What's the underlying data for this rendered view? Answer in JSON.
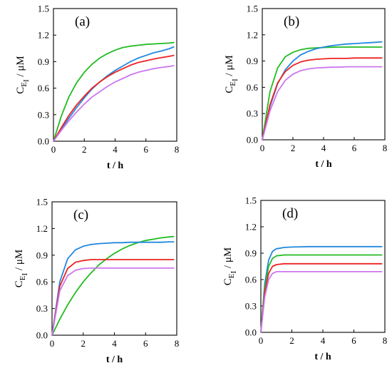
{
  "chart_data": [
    {
      "type": "line",
      "annotation": "(a)",
      "xlabel": "t / h",
      "ylabel": {
        "main": "C",
        "sub": "E",
        "subsub": "I",
        "unit": " / μM"
      },
      "xlim": [
        0,
        8
      ],
      "ylim": [
        0,
        1.5
      ],
      "xticks": [
        0,
        2,
        4,
        6,
        8
      ],
      "yticks": [
        "0.0",
        "0.3",
        "0.6",
        "0.9",
        "1.2",
        "1.5"
      ],
      "x": [
        0,
        0.5,
        1,
        1.5,
        2,
        2.5,
        3,
        3.5,
        4,
        4.5,
        5,
        5.5,
        6,
        6.5,
        7,
        7.5,
        7.8
      ],
      "series": [
        {
          "color": "#22bb22",
          "values": [
            0,
            0.28,
            0.5,
            0.66,
            0.78,
            0.87,
            0.94,
            0.99,
            1.03,
            1.06,
            1.075,
            1.085,
            1.095,
            1.1,
            1.105,
            1.11,
            1.115
          ]
        },
        {
          "color": "#2288dd",
          "values": [
            0,
            0.13,
            0.26,
            0.38,
            0.49,
            0.59,
            0.67,
            0.74,
            0.8,
            0.85,
            0.9,
            0.94,
            0.97,
            1.0,
            1.02,
            1.045,
            1.065
          ]
        },
        {
          "color": "#ee2222",
          "values": [
            0,
            0.15,
            0.29,
            0.41,
            0.51,
            0.6,
            0.67,
            0.73,
            0.78,
            0.82,
            0.86,
            0.89,
            0.91,
            0.93,
            0.945,
            0.96,
            0.97
          ]
        },
        {
          "color": "#cc77ee",
          "values": [
            0,
            0.12,
            0.23,
            0.33,
            0.42,
            0.5,
            0.56,
            0.62,
            0.67,
            0.71,
            0.75,
            0.78,
            0.8,
            0.82,
            0.835,
            0.845,
            0.855
          ]
        }
      ]
    },
    {
      "type": "line",
      "annotation": "(b)",
      "xlabel": "t / h",
      "ylabel": {
        "main": "C",
        "sub": "E",
        "subsub": "I",
        "unit": " / μM"
      },
      "xlim": [
        0,
        8
      ],
      "ylim": [
        0,
        1.5
      ],
      "xticks": [
        0,
        2,
        4,
        6,
        8
      ],
      "yticks": [
        "0.0",
        "0.3",
        "0.6",
        "0.9",
        "1.2",
        "1.5"
      ],
      "x": [
        0,
        0.5,
        1,
        1.5,
        2,
        2.5,
        3,
        3.5,
        4,
        4.5,
        5,
        5.5,
        6,
        6.5,
        7,
        7.5,
        7.8
      ],
      "series": [
        {
          "color": "#22bb22",
          "values": [
            0,
            0.55,
            0.82,
            0.95,
            1.0,
            1.03,
            1.045,
            1.05,
            1.055,
            1.058,
            1.06,
            1.06,
            1.06,
            1.06,
            1.06,
            1.06,
            1.06
          ]
        },
        {
          "color": "#2288dd",
          "values": [
            0,
            0.38,
            0.64,
            0.8,
            0.9,
            0.97,
            1.01,
            1.04,
            1.06,
            1.075,
            1.085,
            1.095,
            1.1,
            1.105,
            1.11,
            1.115,
            1.12
          ]
        },
        {
          "color": "#ee2222",
          "values": [
            0,
            0.4,
            0.65,
            0.78,
            0.85,
            0.89,
            0.91,
            0.92,
            0.925,
            0.93,
            0.93,
            0.93,
            0.935,
            0.935,
            0.935,
            0.935,
            0.935
          ]
        },
        {
          "color": "#cc77ee",
          "values": [
            0,
            0.33,
            0.55,
            0.68,
            0.75,
            0.79,
            0.81,
            0.82,
            0.825,
            0.83,
            0.83,
            0.835,
            0.835,
            0.835,
            0.835,
            0.835,
            0.835
          ]
        }
      ]
    },
    {
      "type": "line",
      "annotation": "(c)",
      "xlabel": "t / h",
      "ylabel": {
        "main": "C",
        "sub": "E",
        "subsub": "I",
        "unit": " / μM"
      },
      "xlim": [
        0,
        8
      ],
      "ylim": [
        0,
        1.5
      ],
      "xticks": [
        0,
        2,
        4,
        6,
        8
      ],
      "yticks": [
        "0.0",
        "0.3",
        "0.6",
        "0.9",
        "1.2",
        "1.5"
      ],
      "x": [
        0,
        0.5,
        1,
        1.5,
        2,
        2.5,
        3,
        3.5,
        4,
        4.5,
        5,
        5.5,
        6,
        6.5,
        7,
        7.5,
        7.8
      ],
      "series": [
        {
          "color": "#22bb22",
          "values": [
            0,
            0.18,
            0.34,
            0.48,
            0.6,
            0.7,
            0.79,
            0.86,
            0.92,
            0.97,
            1.01,
            1.04,
            1.065,
            1.08,
            1.095,
            1.105,
            1.11
          ]
        },
        {
          "color": "#2288dd",
          "values": [
            0,
            0.6,
            0.86,
            0.96,
            1.0,
            1.02,
            1.03,
            1.035,
            1.04,
            1.04,
            1.045,
            1.045,
            1.045,
            1.045,
            1.045,
            1.05,
            1.05
          ]
        },
        {
          "color": "#ee2222",
          "values": [
            0,
            0.55,
            0.75,
            0.82,
            0.84,
            0.85,
            0.85,
            0.85,
            0.85,
            0.85,
            0.85,
            0.85,
            0.85,
            0.85,
            0.85,
            0.85,
            0.85
          ]
        },
        {
          "color": "#cc77ee",
          "values": [
            0,
            0.5,
            0.67,
            0.73,
            0.75,
            0.755,
            0.755,
            0.755,
            0.755,
            0.755,
            0.755,
            0.755,
            0.755,
            0.755,
            0.755,
            0.755,
            0.755
          ]
        }
      ]
    },
    {
      "type": "line",
      "annotation": "(d)",
      "xlabel": "t / h",
      "ylabel": {
        "main": "C",
        "sub": "E",
        "subsub": "I",
        "unit": " / μM"
      },
      "xlim": [
        0,
        8
      ],
      "ylim": [
        0,
        1.5
      ],
      "xticks": [
        0,
        2,
        4,
        6,
        8
      ],
      "yticks": [
        "0.0",
        "0.3",
        "0.6",
        "0.9",
        "1.2",
        "1.5"
      ],
      "x": [
        0,
        0.25,
        0.5,
        0.75,
        1,
        1.5,
        2,
        2.5,
        3,
        4,
        5,
        6,
        7,
        7.8
      ],
      "series": [
        {
          "color": "#2288dd",
          "values": [
            0,
            0.55,
            0.82,
            0.92,
            0.95,
            0.965,
            0.97,
            0.972,
            0.975,
            0.975,
            0.975,
            0.975,
            0.975,
            0.975
          ]
        },
        {
          "color": "#22bb22",
          "values": [
            0,
            0.5,
            0.75,
            0.84,
            0.87,
            0.88,
            0.88,
            0.88,
            0.88,
            0.88,
            0.88,
            0.88,
            0.88,
            0.88
          ]
        },
        {
          "color": "#ee2222",
          "values": [
            0,
            0.45,
            0.67,
            0.75,
            0.77,
            0.78,
            0.78,
            0.78,
            0.78,
            0.78,
            0.78,
            0.78,
            0.78,
            0.78
          ]
        },
        {
          "color": "#cc77ee",
          "values": [
            0,
            0.4,
            0.6,
            0.67,
            0.69,
            0.69,
            0.69,
            0.69,
            0.69,
            0.69,
            0.69,
            0.69,
            0.69,
            0.69
          ]
        }
      ]
    }
  ]
}
